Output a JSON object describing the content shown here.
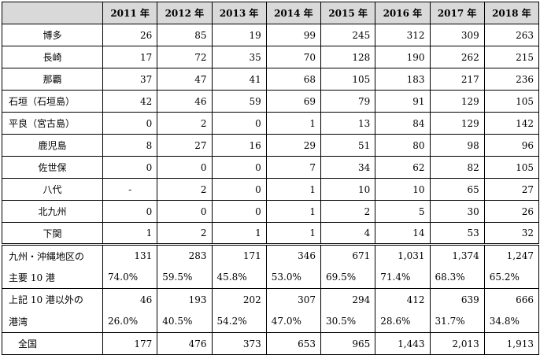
{
  "years": [
    "2011 年",
    "2012 年",
    "2013 年",
    "2014 年",
    "2015 年",
    "2016 年",
    "2017 年",
    "2018 年"
  ],
  "ports": [
    {
      "name": "博多",
      "values": [
        "26",
        "85",
        "19",
        "99",
        "245",
        "312",
        "309",
        "263"
      ]
    },
    {
      "name": "長崎",
      "values": [
        "17",
        "72",
        "35",
        "70",
        "128",
        "190",
        "262",
        "215"
      ]
    },
    {
      "name": "那覇",
      "values": [
        "37",
        "47",
        "41",
        "68",
        "105",
        "183",
        "217",
        "236"
      ]
    },
    {
      "name": "石垣（石垣島）",
      "values": [
        "42",
        "46",
        "59",
        "69",
        "79",
        "91",
        "129",
        "105"
      ]
    },
    {
      "name": "平良（宮古島）",
      "values": [
        "0",
        "2",
        "0",
        "1",
        "13",
        "84",
        "129",
        "142"
      ]
    },
    {
      "name": "鹿児島",
      "values": [
        "8",
        "27",
        "16",
        "29",
        "51",
        "80",
        "98",
        "96"
      ]
    },
    {
      "name": "佐世保",
      "values": [
        "0",
        "0",
        "0",
        "7",
        "34",
        "62",
        "82",
        "105"
      ]
    },
    {
      "name": "八代",
      "values": [
        "-",
        "2",
        "0",
        "1",
        "10",
        "10",
        "65",
        "27"
      ]
    },
    {
      "name": "北九州",
      "values": [
        "0",
        "0",
        "0",
        "1",
        "2",
        "5",
        "30",
        "26"
      ]
    },
    {
      "name": "下関",
      "values": [
        "1",
        "2",
        "1",
        "1",
        "4",
        "14",
        "53",
        "32"
      ]
    }
  ],
  "summary": [
    {
      "label_line1": "九州・沖縄地区の",
      "label_line2": "主要 10 港",
      "counts": [
        "131",
        "283",
        "171",
        "346",
        "671",
        "1,031",
        "1,374",
        "1,247"
      ],
      "pcts": [
        "74.0%",
        "59.5%",
        "45.8%",
        "53.0%",
        "69.5%",
        "71.4%",
        "68.3%",
        "65.2%"
      ]
    },
    {
      "label_line1": "上記 10 港以外の",
      "label_line2": "港湾",
      "counts": [
        "46",
        "193",
        "202",
        "307",
        "294",
        "412",
        "639",
        "666"
      ],
      "pcts": [
        "26.0%",
        "40.5%",
        "54.2%",
        "47.0%",
        "30.5%",
        "28.6%",
        "31.7%",
        "34.8%"
      ]
    }
  ],
  "total": {
    "label": "全国",
    "values": [
      "177",
      "476",
      "373",
      "653",
      "965",
      "1,443",
      "2,013",
      "1,913"
    ]
  }
}
